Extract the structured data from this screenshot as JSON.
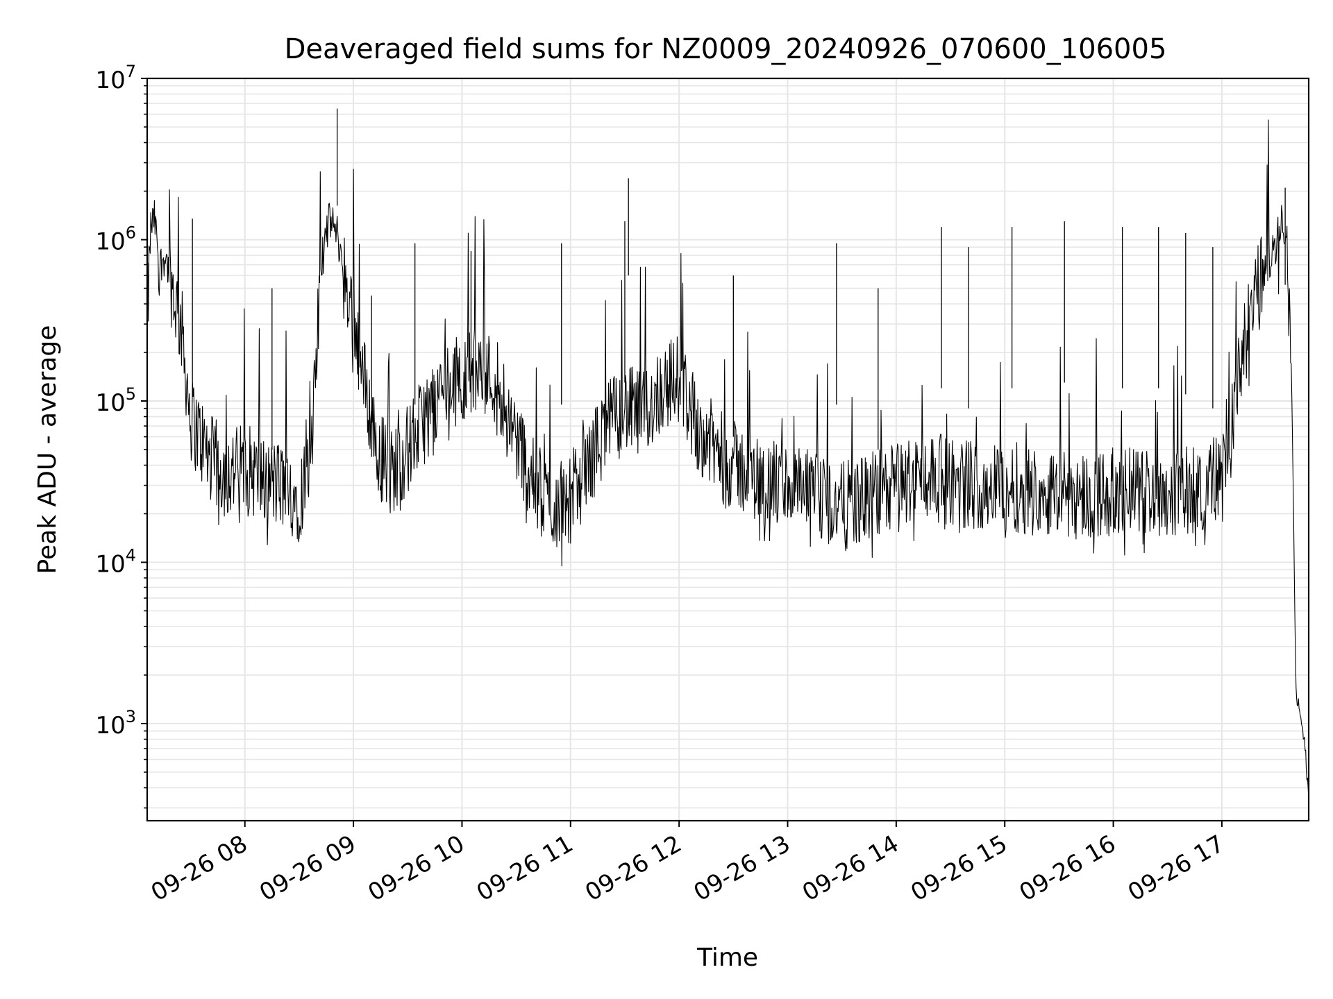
{
  "chart_data": {
    "type": "line",
    "title": "Deaveraged field sums for NZ0009_20240926_070600_106005",
    "xlabel": "Time",
    "ylabel": "Peak ADU - average",
    "yscale": "log",
    "ylim": [
      250,
      10000000
    ],
    "xlim": [
      "2024-09-26T07:06:00",
      "2024-09-26T17:48:00"
    ],
    "x_ticks": [
      {
        "t": "2024-09-26T08:00",
        "label": "09-26 08"
      },
      {
        "t": "2024-09-26T09:00",
        "label": "09-26 09"
      },
      {
        "t": "2024-09-26T10:00",
        "label": "09-26 10"
      },
      {
        "t": "2024-09-26T11:00",
        "label": "09-26 11"
      },
      {
        "t": "2024-09-26T12:00",
        "label": "09-26 12"
      },
      {
        "t": "2024-09-26T13:00",
        "label": "09-26 13"
      },
      {
        "t": "2024-09-26T14:00",
        "label": "09-26 14"
      },
      {
        "t": "2024-09-26T15:00",
        "label": "09-26 15"
      },
      {
        "t": "2024-09-26T16:00",
        "label": "09-26 16"
      },
      {
        "t": "2024-09-26T17:00",
        "label": "09-26 17"
      }
    ],
    "y_ticks": [
      {
        "v": 1000,
        "base": "10",
        "exp": "3"
      },
      {
        "v": 10000,
        "base": "10",
        "exp": "4"
      },
      {
        "v": 100000,
        "base": "10",
        "exp": "5"
      },
      {
        "v": 1000000,
        "base": "10",
        "exp": "6"
      },
      {
        "v": 10000000,
        "base": "10",
        "exp": "7"
      }
    ],
    "grid": true,
    "line_color": "#000000",
    "grid_color": "#e6e6e6",
    "series": [
      {
        "points": [
          [
            "2024-09-26T07:06",
            300000
          ],
          [
            "2024-09-26T07:08",
            1200000
          ],
          [
            "2024-09-26T07:10",
            1350000
          ],
          [
            "2024-09-26T07:13",
            700000
          ],
          [
            "2024-09-26T07:16",
            800000
          ],
          [
            "2024-09-26T07:20",
            500000
          ],
          [
            "2024-09-26T07:25",
            280000
          ],
          [
            "2024-09-26T07:30",
            80000
          ],
          [
            "2024-09-26T07:40",
            45000
          ],
          [
            "2024-09-26T07:50",
            35000
          ],
          [
            "2024-09-26T08:00",
            40000
          ],
          [
            "2024-09-26T08:10",
            32000
          ],
          [
            "2024-09-26T08:20",
            30000
          ],
          [
            "2024-09-26T08:30",
            25000
          ],
          [
            "2024-09-26T08:37",
            45000
          ],
          [
            "2024-09-26T08:40",
            250000
          ],
          [
            "2024-09-26T08:43",
            900000
          ],
          [
            "2024-09-26T08:47",
            1350000
          ],
          [
            "2024-09-26T08:51",
            1100000
          ],
          [
            "2024-09-26T08:55",
            600000
          ],
          [
            "2024-09-26T09:00",
            350000
          ],
          [
            "2024-09-26T09:05",
            150000
          ],
          [
            "2024-09-26T09:12",
            60000
          ],
          [
            "2024-09-26T09:20",
            35000
          ],
          [
            "2024-09-26T09:30",
            50000
          ],
          [
            "2024-09-26T09:40",
            80000
          ],
          [
            "2024-09-26T09:50",
            120000
          ],
          [
            "2024-09-26T10:00",
            140000
          ],
          [
            "2024-09-26T10:10",
            160000
          ],
          [
            "2024-09-26T10:20",
            130000
          ],
          [
            "2024-09-26T10:30",
            60000
          ],
          [
            "2024-09-26T10:40",
            30000
          ],
          [
            "2024-09-26T10:50",
            22000
          ],
          [
            "2024-09-26T11:00",
            25000
          ],
          [
            "2024-09-26T11:10",
            40000
          ],
          [
            "2024-09-26T11:20",
            70000
          ],
          [
            "2024-09-26T11:30",
            90000
          ],
          [
            "2024-09-26T11:40",
            80000
          ],
          [
            "2024-09-26T11:50",
            120000
          ],
          [
            "2024-09-26T12:00",
            140000
          ],
          [
            "2024-09-26T12:10",
            70000
          ],
          [
            "2024-09-26T12:20",
            50000
          ],
          [
            "2024-09-26T12:30",
            40000
          ],
          [
            "2024-09-26T12:40",
            35000
          ],
          [
            "2024-09-26T12:50",
            30000
          ],
          [
            "2024-09-26T13:00",
            30000
          ],
          [
            "2024-09-26T13:15",
            25000
          ],
          [
            "2024-09-26T13:30",
            22000
          ],
          [
            "2024-09-26T13:45",
            25000
          ],
          [
            "2024-09-26T14:00",
            30000
          ],
          [
            "2024-09-26T14:15",
            35000
          ],
          [
            "2024-09-26T14:30",
            32000
          ],
          [
            "2024-09-26T14:45",
            30000
          ],
          [
            "2024-09-26T15:00",
            30000
          ],
          [
            "2024-09-26T15:15",
            28000
          ],
          [
            "2024-09-26T15:30",
            27000
          ],
          [
            "2024-09-26T15:45",
            26000
          ],
          [
            "2024-09-26T16:00",
            27000
          ],
          [
            "2024-09-26T16:15",
            28000
          ],
          [
            "2024-09-26T16:30",
            27000
          ],
          [
            "2024-09-26T16:45",
            28000
          ],
          [
            "2024-09-26T17:00",
            35000
          ],
          [
            "2024-09-26T17:05",
            60000
          ],
          [
            "2024-09-26T17:10",
            150000
          ],
          [
            "2024-09-26T17:15",
            300000
          ],
          [
            "2024-09-26T17:20",
            500000
          ],
          [
            "2024-09-26T17:25",
            700000
          ],
          [
            "2024-09-26T17:30",
            900000
          ],
          [
            "2024-09-26T17:33",
            1500000
          ],
          [
            "2024-09-26T17:36",
            1000000
          ],
          [
            "2024-09-26T17:39",
            60000
          ],
          [
            "2024-09-26T17:41",
            1500
          ],
          [
            "2024-09-26T17:43",
            1200
          ],
          [
            "2024-09-26T17:46",
            700
          ],
          [
            "2024-09-26T17:48",
            350
          ]
        ]
      }
    ],
    "spikes": [
      [
        "2024-09-26T08:51",
        6500000
      ],
      [
        "2024-09-26T11:32",
        2400000
      ],
      [
        "2024-09-26T17:35",
        2100000
      ],
      [
        "2024-09-26T07:31",
        1350000
      ],
      [
        "2024-09-26T11:30",
        1300000
      ],
      [
        "2024-09-26T14:25",
        1200000
      ],
      [
        "2024-09-26T15:04",
        1200000
      ],
      [
        "2024-09-26T15:33",
        1300000
      ],
      [
        "2024-09-26T16:05",
        1200000
      ],
      [
        "2024-09-26T16:25",
        1200000
      ],
      [
        "2024-09-26T09:34",
        950000
      ],
      [
        "2024-09-26T10:05",
        850000
      ],
      [
        "2024-09-26T10:55",
        950000
      ],
      [
        "2024-09-26T13:27",
        950000
      ],
      [
        "2024-09-26T14:40",
        900000
      ],
      [
        "2024-09-26T16:55",
        900000
      ],
      [
        "2024-09-26T08:15",
        500000
      ],
      [
        "2024-09-26T09:10",
        450000
      ],
      [
        "2024-09-26T12:30",
        600000
      ],
      [
        "2024-09-26T13:50",
        500000
      ],
      [
        "2024-09-26T16:40",
        1100000
      ]
    ]
  }
}
